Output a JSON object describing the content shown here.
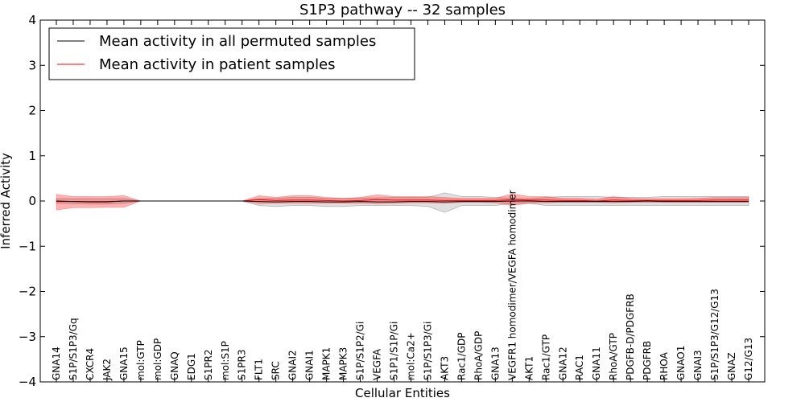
{
  "chart_data": {
    "type": "line",
    "title": "S1P3 pathway -- 32 samples",
    "xlabel": "Cellular Entities",
    "ylabel": "Inferred Activity",
    "ylim": [
      -4,
      4
    ],
    "yticks": [
      4,
      3,
      2,
      1,
      0,
      -1,
      -2,
      -3,
      -4
    ],
    "ytick_labels": [
      "4",
      "3",
      "2",
      "1",
      "0",
      "−1",
      "−2",
      "−3",
      "−4"
    ],
    "legend": {
      "position": "top-left",
      "entries": [
        {
          "label": "Mean activity in all permuted samples",
          "color": "#000000"
        },
        {
          "label": "Mean activity in patient samples",
          "color": "#ff0000"
        }
      ]
    },
    "categories": [
      "GNA14",
      "S1P/S1P3/Gq",
      "CXCR4",
      "JAK2",
      "GNA15",
      "mol:GTP",
      "mol:GDP",
      "GNAQ",
      "EDG1",
      "S1PR2",
      "mol:S1P",
      "S1PR3",
      "FLT1",
      "SRC",
      "GNAI2",
      "GNAI1",
      "MAPK1",
      "MAPK3",
      "S1P/S1P2/Gi",
      "VEGFA",
      "S1P1/S1P/Gi",
      "mol:Ca2+",
      "S1P/S1P3/Gi",
      "AKT3",
      "Rac1/GDP",
      "RhoA/GDP",
      "GNA13",
      "VEGFR1 homodimer/VEGFA homodimer",
      "AKT1",
      "Rac1/GTP",
      "GNA12",
      "RAC1",
      "GNA11",
      "RhoA/GTP",
      "PDGFB-D/PDGFRB",
      "PDGFRB",
      "RHOA",
      "GNAO1",
      "GNAI3",
      "S1P/S1P3/G12/G13",
      "GNAZ",
      "G12/G13"
    ],
    "series": [
      {
        "name": "Mean activity in all permuted samples",
        "color": "#000000",
        "values": [
          0,
          -0.01,
          -0.02,
          -0.02,
          0,
          0,
          0,
          0,
          0,
          0,
          0,
          0,
          -0.01,
          -0.02,
          -0.01,
          -0.01,
          -0.02,
          -0.02,
          -0.01,
          -0.02,
          -0.02,
          -0.01,
          -0.01,
          -0.02,
          -0.01,
          -0.01,
          -0.01,
          0,
          0,
          -0.01,
          -0.01,
          -0.01,
          -0.01,
          -0.01,
          -0.01,
          0,
          -0.01,
          -0.01,
          -0.01,
          -0.01,
          -0.01,
          -0.01
        ],
        "band_upper": [
          0.05,
          0.05,
          0.05,
          0.05,
          0.05,
          0,
          0,
          0,
          0,
          0,
          0,
          0,
          0.05,
          0.06,
          0.08,
          0.08,
          0.06,
          0.06,
          0.07,
          0.07,
          0.08,
          0.08,
          0.08,
          0.18,
          0.1,
          0.1,
          0.08,
          0.06,
          0.05,
          0.08,
          0.1,
          0.1,
          0.1,
          0.08,
          0.08,
          0.08,
          0.1,
          0.1,
          0.1,
          0.1,
          0.1,
          0.1
        ],
        "band_lower": [
          -0.05,
          -0.06,
          -0.07,
          -0.07,
          -0.05,
          0,
          0,
          0,
          0,
          0,
          0,
          0,
          -0.1,
          -0.12,
          -0.1,
          -0.1,
          -0.12,
          -0.12,
          -0.1,
          -0.1,
          -0.1,
          -0.1,
          -0.12,
          -0.25,
          -0.1,
          -0.1,
          -0.1,
          -0.05,
          -0.05,
          -0.1,
          -0.1,
          -0.1,
          -0.1,
          -0.1,
          -0.1,
          -0.1,
          -0.1,
          -0.1,
          -0.1,
          -0.1,
          -0.1,
          -0.1
        ]
      },
      {
        "name": "Mean activity in patient samples",
        "color": "#ff0000",
        "values": [
          -0.01,
          -0.01,
          -0.01,
          -0.01,
          0,
          0,
          0,
          0,
          0,
          0,
          0,
          0,
          0.03,
          0.01,
          0.02,
          0.02,
          0.01,
          0,
          0.01,
          0.03,
          0.02,
          0.02,
          0.02,
          0.01,
          0.01,
          0.01,
          0.01,
          0.03,
          0.02,
          0.02,
          0.01,
          0.01,
          0,
          0.02,
          0.01,
          0.01,
          0.01,
          0.01,
          0.01,
          0.02,
          0.02,
          0.02
        ],
        "band_upper": [
          0.15,
          0.1,
          0.1,
          0.1,
          0.12,
          0,
          0,
          0,
          0,
          0,
          0,
          0,
          0.12,
          0.08,
          0.12,
          0.12,
          0.08,
          0.06,
          0.08,
          0.14,
          0.1,
          0.1,
          0.1,
          0.08,
          0.06,
          0.06,
          0.06,
          0.16,
          0.1,
          0.1,
          0.06,
          0.06,
          0.04,
          0.1,
          0.06,
          0.05,
          0.05,
          0.05,
          0.06,
          0.08,
          0.08,
          0.08
        ],
        "band_lower": [
          -0.2,
          -0.15,
          -0.15,
          -0.14,
          -0.14,
          0,
          0,
          0,
          0,
          0,
          0,
          0,
          -0.06,
          -0.05,
          -0.05,
          -0.05,
          -0.05,
          -0.05,
          -0.05,
          -0.06,
          -0.05,
          -0.04,
          -0.04,
          -0.05,
          -0.03,
          -0.03,
          -0.04,
          -0.1,
          -0.05,
          -0.04,
          -0.03,
          -0.03,
          -0.03,
          -0.04,
          -0.03,
          -0.03,
          -0.03,
          -0.03,
          -0.03,
          -0.03,
          -0.03,
          -0.03
        ]
      }
    ]
  }
}
